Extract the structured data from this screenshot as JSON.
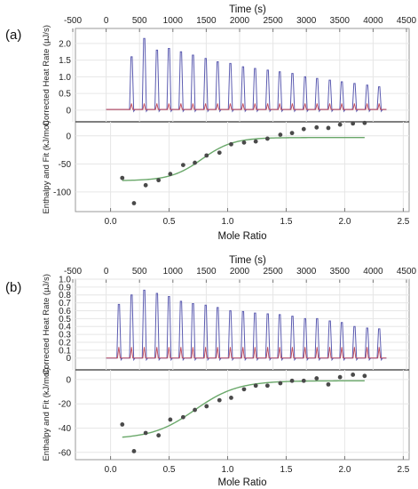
{
  "chart_data": [
    {
      "type": "line",
      "panel_label": "(a)",
      "time_axis": {
        "label": "Time (s)",
        "ticks": [
          "-500",
          "0",
          "500",
          "1000",
          "1500",
          "2000",
          "2500",
          "3000",
          "3500",
          "4000",
          "4500"
        ],
        "range": [
          -500,
          4500
        ]
      },
      "heat_plot": {
        "ylabel": "Corrected Heat Rate (µJ/s)",
        "ylim": [
          -0.35,
          2.45
        ],
        "yticks": [
          "0",
          "0.5",
          "1.0",
          "1.5",
          "2.0"
        ],
        "baseline": 0.02,
        "series": [
          {
            "color": "#5b5bb0",
            "peaks_time_s": [
              380,
              570,
              760,
              940,
              1120,
              1300,
              1490,
              1670,
              1860,
              2050,
              2230,
              2420,
              2600,
              2790,
              2980,
              3160,
              3350,
              3530,
              3720,
              3910,
              4090
            ],
            "peak_values": [
              1.6,
              2.15,
              1.8,
              1.85,
              1.75,
              1.65,
              1.55,
              1.45,
              1.4,
              1.3,
              1.25,
              1.2,
              1.15,
              1.1,
              1.0,
              0.95,
              0.9,
              0.85,
              0.8,
              0.75,
              0.7
            ]
          },
          {
            "color": "#c24a5a",
            "peak_values": [
              0.2,
              0.2,
              0.2,
              0.2,
              0.2,
              0.2,
              0.2,
              0.2,
              0.2,
              0.2,
              0.2,
              0.2,
              0.2,
              0.2,
              0.2,
              0.2,
              0.2,
              0.2,
              0.2,
              0.2,
              0.2
            ]
          }
        ],
        "time_range_s": [
          0,
          4200
        ]
      },
      "enthalpy_plot": {
        "ylabel": "Enthalpy and Fit (kJ/mol)",
        "xlabel": "Mole Ratio",
        "xlim": [
          -0.3,
          2.55
        ],
        "xticks": [
          "0.0",
          "0.5",
          "1.0",
          "1.5",
          "2.0",
          "2.5"
        ],
        "ylim": [
          -135,
          25
        ],
        "yticks": [
          "0",
          "-50",
          "-100"
        ],
        "points": {
          "x": [
            0.1,
            0.2,
            0.3,
            0.41,
            0.51,
            0.62,
            0.72,
            0.82,
            0.93,
            1.03,
            1.14,
            1.24,
            1.34,
            1.45,
            1.55,
            1.65,
            1.76,
            1.86,
            1.96,
            2.07,
            2.17
          ],
          "y": [
            -75,
            -120,
            -88,
            -79,
            -68,
            -52,
            -48,
            -35,
            -30,
            -15,
            -12,
            -10,
            -5,
            2,
            5,
            12,
            15,
            14,
            20,
            22,
            23
          ]
        },
        "fit": {
          "color": "#6aa86a",
          "model": "sigmoid",
          "low": -80,
          "high": -3,
          "midpoint": 0.78,
          "slope": 7.5
        }
      }
    },
    {
      "type": "line",
      "panel_label": "(b)",
      "time_axis": {
        "label": "Time (s)",
        "ticks": [
          "-500",
          "0",
          "500",
          "1000",
          "1500",
          "2000",
          "2500",
          "3000",
          "3500",
          "4000",
          "4500"
        ],
        "range": [
          -500,
          4500
        ]
      },
      "heat_plot": {
        "ylabel": "Corrected Heat Rate (µJ/s)",
        "ylim": [
          -0.15,
          1.0
        ],
        "yticks": [
          "0",
          "0.1",
          "0.2",
          "0.3",
          "0.4",
          "0.5",
          "0.6",
          "0.7",
          "0.8",
          "0.9",
          "1.0"
        ],
        "baseline": 0.0,
        "series": [
          {
            "color": "#5b5bb0",
            "peaks_time_s": [
              190,
              380,
              570,
              760,
              940,
              1120,
              1300,
              1490,
              1670,
              1860,
              2050,
              2230,
              2420,
              2600,
              2790,
              2980,
              3160,
              3350,
              3530,
              3720,
              3910,
              4090
            ],
            "peak_values": [
              0.68,
              0.8,
              0.86,
              0.82,
              0.78,
              0.72,
              0.69,
              0.67,
              0.64,
              0.6,
              0.59,
              0.57,
              0.56,
              0.55,
              0.53,
              0.5,
              0.5,
              0.47,
              0.45,
              0.4,
              0.38,
              0.37
            ]
          },
          {
            "color": "#c24a5a",
            "peak_values": [
              0.14,
              0.14,
              0.14,
              0.14,
              0.14,
              0.14,
              0.14,
              0.14,
              0.14,
              0.14,
              0.14,
              0.14,
              0.14,
              0.14,
              0.14,
              0.14,
              0.14,
              0.14,
              0.14,
              0.14,
              0.14,
              0.14
            ]
          }
        ],
        "time_range_s": [
          0,
          4200
        ]
      },
      "enthalpy_plot": {
        "ylabel": "Enthalpy and Fit (kJ/mol)",
        "xlabel": "Mole Ratio",
        "xlim": [
          -0.3,
          2.55
        ],
        "xticks": [
          "0.0",
          "0.5",
          "1.0",
          "1.5",
          "2.0",
          "2.5"
        ],
        "ylim": [
          -66,
          8
        ],
        "yticks": [
          "0",
          "-20",
          "-40",
          "-60"
        ],
        "points": {
          "x": [
            0.1,
            0.2,
            0.3,
            0.41,
            0.51,
            0.62,
            0.72,
            0.82,
            0.93,
            1.03,
            1.14,
            1.24,
            1.34,
            1.45,
            1.55,
            1.65,
            1.76,
            1.86,
            1.96,
            2.07,
            2.17
          ],
          "y": [
            -37,
            -59,
            -44,
            -46,
            -33,
            -31,
            -25,
            -22,
            -17,
            -15,
            -8,
            -5,
            -5,
            -3,
            -1,
            -1,
            1,
            -4,
            2,
            4,
            3
          ]
        },
        "fit": {
          "color": "#6aa86a",
          "model": "sigmoid",
          "low": -49,
          "high": -1,
          "midpoint": 0.72,
          "slope": 5.5
        }
      }
    }
  ]
}
